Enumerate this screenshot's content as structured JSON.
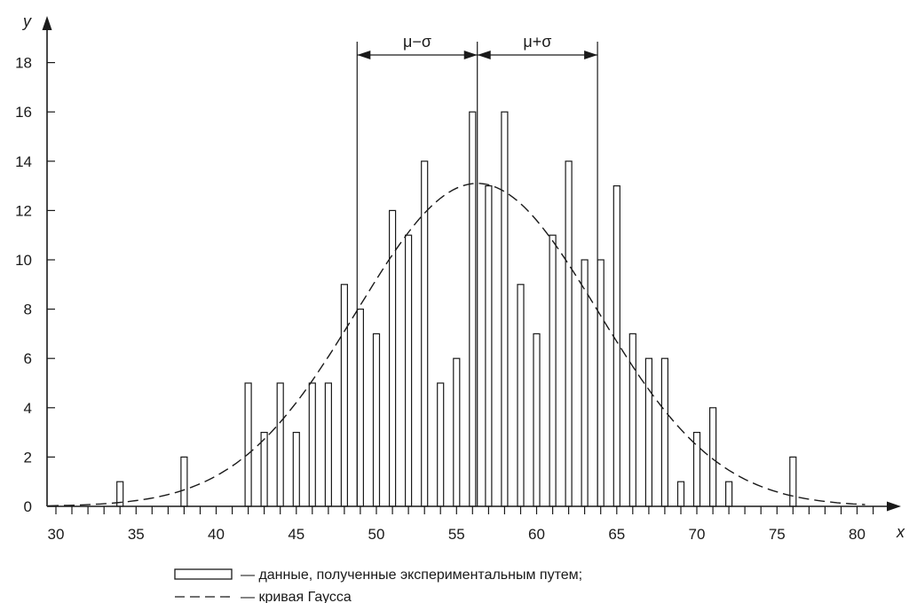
{
  "chart_data": {
    "type": "bar",
    "title": "",
    "xlabel": "x",
    "ylabel": "y",
    "xlim": [
      29.3,
      81
    ],
    "ylim": [
      0,
      18.8
    ],
    "x_ticks": [
      30,
      35,
      40,
      45,
      50,
      55,
      60,
      65,
      70,
      75,
      80
    ],
    "y_ticks": [
      0,
      2,
      4,
      6,
      8,
      10,
      12,
      14,
      16,
      18
    ],
    "minor_x_step": 1,
    "grid": false,
    "series": [
      {
        "type": "bar",
        "x": [
          34,
          38,
          42,
          43,
          44,
          45,
          46,
          47,
          48,
          49,
          50,
          51,
          52,
          53,
          54,
          55,
          56,
          57,
          58,
          59,
          60,
          61,
          62,
          63,
          64,
          65,
          66,
          67,
          68,
          69,
          70,
          71,
          72,
          76
        ],
        "values": [
          1,
          2,
          5,
          3,
          5,
          3,
          5,
          5,
          9,
          8,
          7,
          12,
          11,
          14,
          5,
          6,
          16,
          13,
          16,
          9,
          7,
          11,
          14,
          10,
          10,
          13,
          7,
          6,
          6,
          1,
          3,
          4,
          1,
          2
        ]
      },
      {
        "type": "line",
        "style": "dashed",
        "mu": 56.3,
        "sigma": 7.5,
        "peak": 13.1,
        "x_range": [
          29.5,
          80.5
        ]
      }
    ],
    "annotations": [
      {
        "label": "μ−σ",
        "from": 48.8,
        "to": 56.3
      },
      {
        "label": "μ+σ",
        "from": 56.3,
        "to": 63.8
      }
    ],
    "legend": {
      "position": "bottom-center",
      "entries": [
        {
          "symbol": "bar",
          "label": "— данные, полученные экспериментальным путем;"
        },
        {
          "symbol": "dashed-line",
          "label": "— кривая Гаусса"
        }
      ]
    }
  }
}
